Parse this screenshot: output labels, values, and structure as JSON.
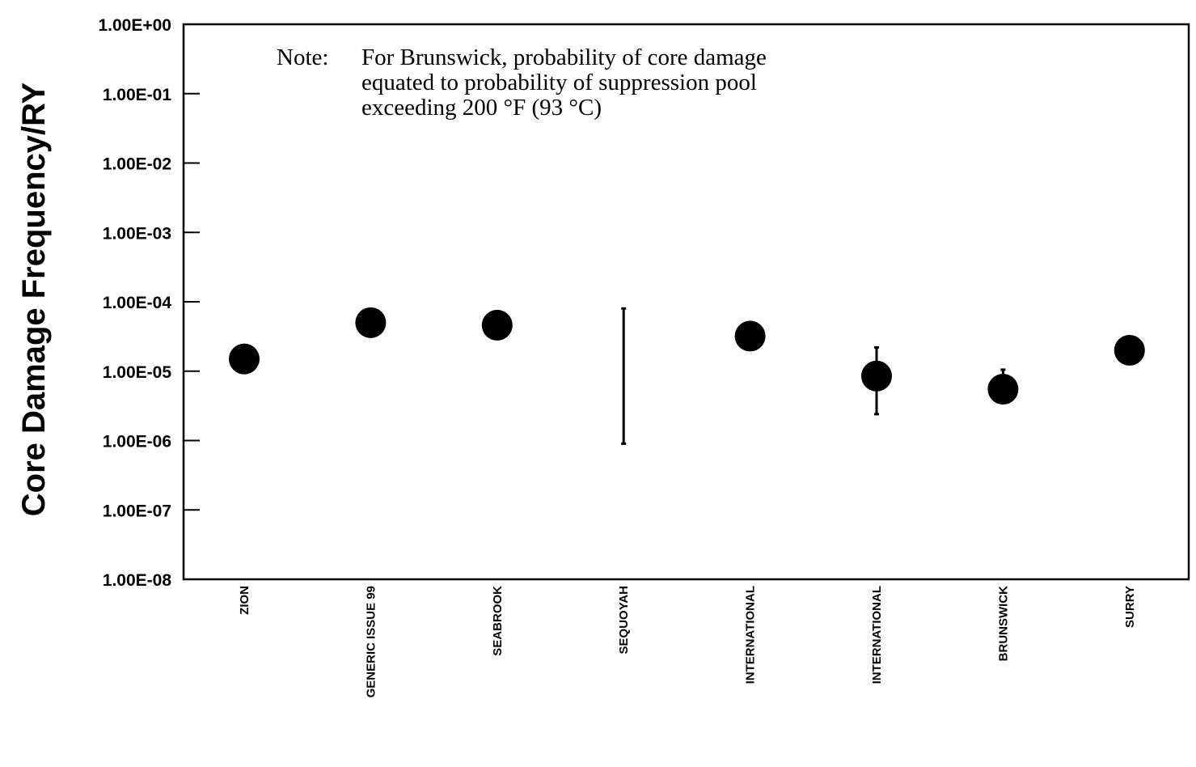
{
  "chart_data": {
    "type": "scatter",
    "title": "",
    "xlabel": "",
    "ylabel": "Core Damage Frequency/RY",
    "yscale": "log",
    "ylim": [
      1e-08,
      1
    ],
    "yticks": [
      {
        "value": 1,
        "label": "1.00E+00"
      },
      {
        "value": 0.1,
        "label": "1.00E-01"
      },
      {
        "value": 0.01,
        "label": "1.00E-02"
      },
      {
        "value": 0.001,
        "label": "1.00E-03"
      },
      {
        "value": 0.0001,
        "label": "1.00E-04"
      },
      {
        "value": 1e-05,
        "label": "1.00E-05"
      },
      {
        "value": 1e-06,
        "label": "1.00E-06"
      },
      {
        "value": 1e-07,
        "label": "1.00E-07"
      },
      {
        "value": 1e-08,
        "label": "1.00E-08"
      }
    ],
    "categories": [
      "ZION",
      "GENERIC ISSUE 99",
      "SEABROOK",
      "SEQUOYAH",
      "INTERNATIONAL",
      "INTERNATIONAL",
      "BRUNSWICK",
      "SURRY"
    ],
    "points": [
      {
        "category": "ZION",
        "value": 1.5e-05,
        "low": null,
        "high": null
      },
      {
        "category": "GENERIC ISSUE 99",
        "value": 5e-05,
        "low": null,
        "high": null
      },
      {
        "category": "SEABROOK",
        "value": 4.6e-05,
        "low": null,
        "high": null
      },
      {
        "category": "SEQUOYAH",
        "value": null,
        "low": 9e-07,
        "high": 8e-05
      },
      {
        "category": "INTERNATIONAL",
        "value": 3.2e-05,
        "low": null,
        "high": null
      },
      {
        "category": "INTERNATIONAL",
        "value": 8.5e-06,
        "low": 2.4e-06,
        "high": 2.2e-05
      },
      {
        "category": "BRUNSWICK",
        "value": 5.5e-06,
        "low": null,
        "high": 1.05e-05
      },
      {
        "category": "SURRY",
        "value": 2e-05,
        "low": null,
        "high": null
      }
    ],
    "annotation": {
      "label": "Note:",
      "lines": [
        "For Brunswick, probability of core damage",
        "equated to probability of suppression pool",
        "exceeding 200 °F (93 °C)"
      ]
    },
    "grid": false,
    "legend": "none"
  }
}
